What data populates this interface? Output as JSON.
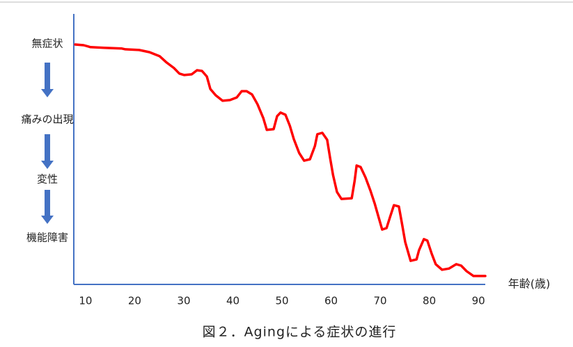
{
  "chart_data": {
    "type": "line",
    "caption": "図２．Agingによる症状の進行",
    "x_label": "年齢(歳)",
    "x": [
      7.9,
      9.6,
      11.0,
      13.8,
      17.4,
      18.1,
      20.9,
      23.0,
      25.1,
      26.5,
      28.0,
      29.1,
      30.1,
      31.6,
      32.7,
      33.7,
      34.7,
      35.4,
      36.5,
      37.9,
      39.4,
      40.8,
      41.8,
      42.8,
      43.9,
      45.0,
      46.2,
      46.9,
      48.3,
      49.0,
      49.7,
      50.7,
      51.6,
      52.4,
      53.5,
      54.5,
      55.7,
      56.7,
      57.2,
      58.2,
      59.2,
      59.8,
      60.4,
      61.2,
      62.1,
      64.2,
      64.8,
      65.2,
      66.0,
      67.0,
      68.0,
      68.9,
      69.7,
      70.4,
      71.3,
      72.0,
      72.8,
      73.8,
      74.4,
      75.1,
      76.2,
      77.4,
      77.9,
      78.9,
      79.6,
      80.5,
      81.3,
      82.6,
      84.0,
      85.5,
      86.5,
      87.6,
      89.0,
      91.4
    ],
    "series": [
      {
        "color": "#ff0000",
        "values": [
          99.7,
          99.4,
          98.6,
          98.3,
          98.0,
          97.7,
          97.4,
          96.5,
          94.8,
          92.2,
          89.9,
          87.6,
          87.0,
          87.3,
          89.0,
          88.7,
          86.4,
          81.2,
          78.6,
          76.3,
          76.6,
          77.7,
          80.3,
          80.3,
          78.9,
          74.9,
          69.1,
          64.2,
          64.5,
          69.9,
          71.4,
          70.5,
          65.9,
          60.4,
          54.6,
          51.4,
          52.0,
          57.5,
          62.4,
          63.0,
          60.1,
          52.6,
          45.4,
          38.4,
          35.5,
          35.8,
          43.1,
          49.4,
          48.8,
          44.5,
          39.0,
          33.5,
          27.7,
          22.8,
          23.4,
          28.0,
          32.9,
          32.4,
          25.7,
          17.6,
          9.8,
          10.4,
          14.2,
          18.8,
          18.2,
          12.7,
          8.4,
          6.1,
          6.6,
          8.4,
          7.8,
          5.5,
          3.5,
          3.5
        ]
      }
    ],
    "xlim": [
      7.6,
      91.4
    ],
    "xticks": [
      10,
      20,
      30,
      40,
      50,
      60,
      70,
      80,
      90
    ],
    "ylim": [
      0,
      112.4
    ],
    "yticks": [
      {
        "value": 100,
        "label": "無症状"
      },
      {
        "value": 68.5,
        "label": "痛みの出現"
      },
      {
        "value": 43.6,
        "label": "変性"
      },
      {
        "value": 19.4,
        "label": "機能障害"
      }
    ],
    "axis_color": "#4472c4"
  }
}
